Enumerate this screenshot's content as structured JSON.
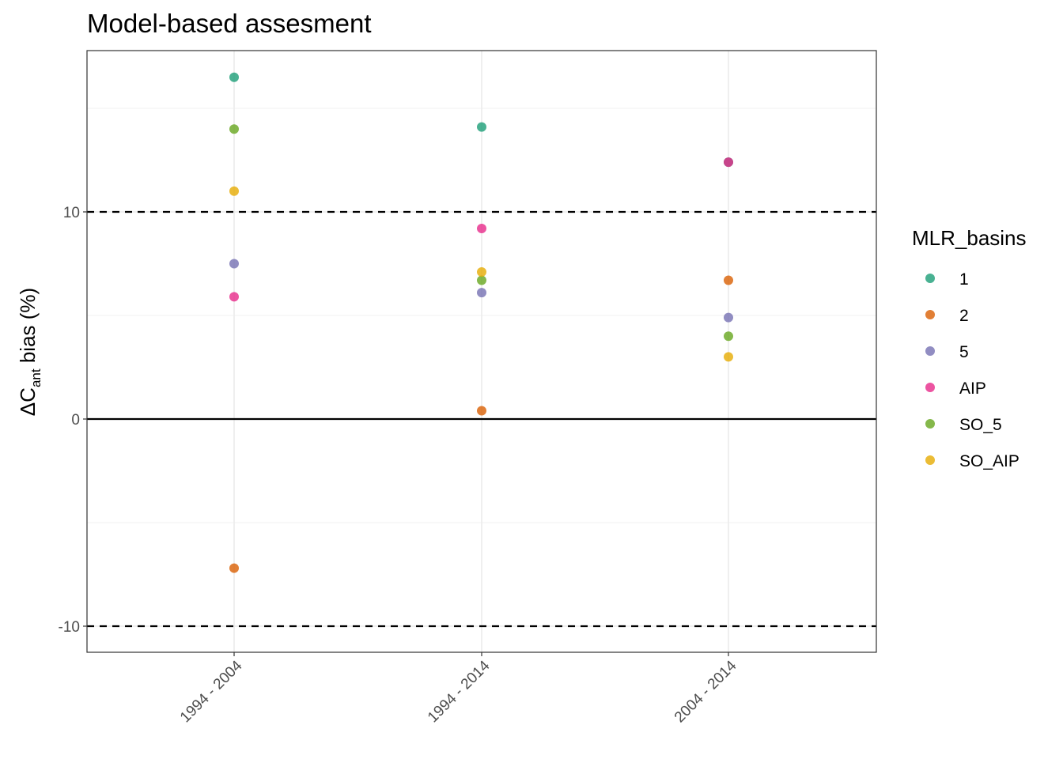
{
  "chart_data": {
    "type": "scatter",
    "title": "Model-based assesment",
    "xlabel": "",
    "ylabel": {
      "prefix": "ΔC",
      "subscript": "ant",
      "suffix": " bias (%)"
    },
    "categories": [
      "1994 - 2004",
      "1994 - 2014",
      "2004 - 2014"
    ],
    "ylim": [
      -11.2,
      17.9
    ],
    "yticks": [
      -10,
      0,
      10
    ],
    "reference_lines": [
      {
        "y": 0,
        "style": "solid"
      },
      {
        "y": 10,
        "style": "dashed"
      },
      {
        "y": -10,
        "style": "dashed"
      }
    ],
    "grid": true,
    "legend": {
      "title": "MLR_basins",
      "position": "right"
    },
    "series": [
      {
        "name": "1",
        "color": "#1b9e77",
        "values": [
          16.5,
          14.1,
          12.4
        ]
      },
      {
        "name": "2",
        "color": "#d95f02",
        "values": [
          -7.2,
          0.4,
          6.7
        ]
      },
      {
        "name": "5",
        "color": "#7570b3",
        "values": [
          7.5,
          6.1,
          4.9
        ]
      },
      {
        "name": "AIP",
        "color": "#e7298a",
        "values": [
          5.9,
          9.2,
          12.4
        ]
      },
      {
        "name": "SO_5",
        "color": "#66a61e",
        "values": [
          14.0,
          6.7,
          4.0
        ]
      },
      {
        "name": "SO_AIP",
        "color": "#e6ab02",
        "values": [
          11.0,
          7.1,
          3.0
        ]
      }
    ]
  }
}
